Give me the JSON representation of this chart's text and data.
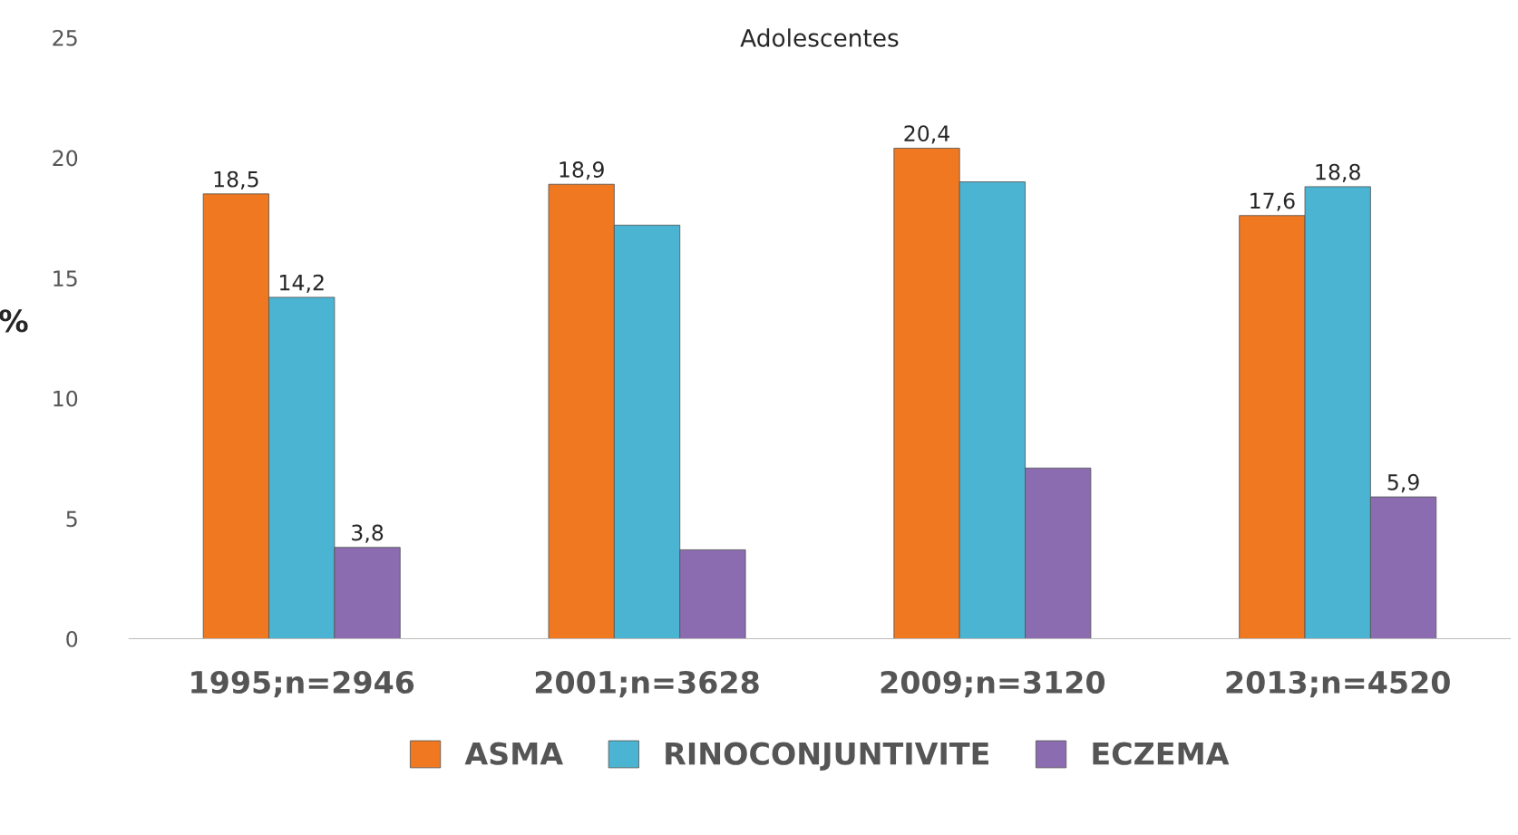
{
  "chart_data": {
    "type": "bar",
    "title": "Adolescentes",
    "ylabel": "%",
    "categories": [
      "1995;n=2946",
      "2001;n=3628",
      "2009;n=3120",
      "2013;n=4520"
    ],
    "series": [
      {
        "name": "ASMA",
        "color": "#f07820",
        "values": [
          18.5,
          18.9,
          20.4,
          17.6
        ],
        "value_labels": [
          "18,5",
          "18,9",
          "20,4",
          "17,6"
        ]
      },
      {
        "name": "RINOCONJUNTIVITE",
        "color": "#4bb4d2",
        "values": [
          14.2,
          17.2,
          19.0,
          18.8
        ],
        "value_labels": [
          "14,2",
          null,
          null,
          "18,8"
        ]
      },
      {
        "name": "ECZEMA",
        "color": "#8c6cb0",
        "values": [
          3.8,
          3.7,
          7.1,
          5.9
        ],
        "value_labels": [
          "3,8",
          null,
          null,
          "5,9"
        ]
      }
    ],
    "ylim": [
      0,
      25
    ],
    "yticks": [
      0,
      5,
      10,
      15,
      20,
      25
    ],
    "grid": false,
    "legend": "bottom"
  }
}
